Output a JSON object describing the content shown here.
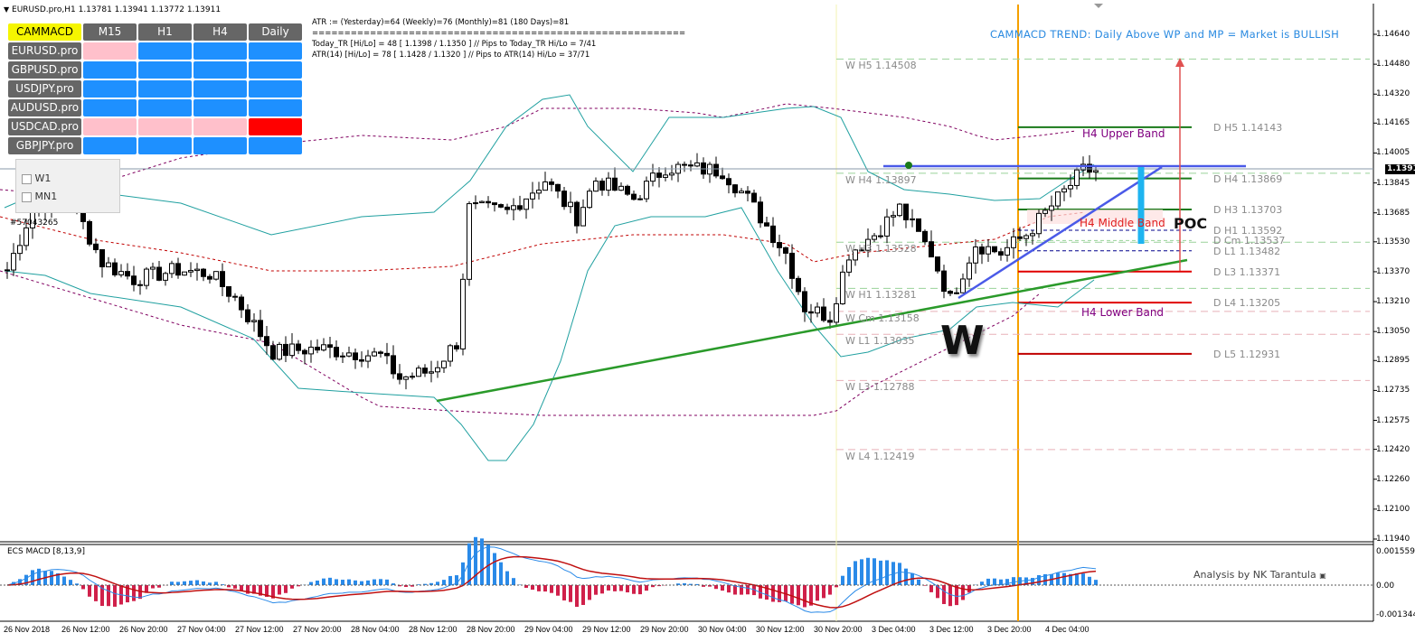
{
  "window": {
    "title": "EURUSD.pro,H1  1.13781 1.13941 1.13772 1.13911",
    "account_label": "#57043265"
  },
  "info_lines": [
    "ATR := (Yesterday)=64     (Weekly)=76      (Monthly)=81      (180 Days)=81",
    "==========================================================",
    "Today_TR [Hi/Lo] = 48 [ 1.1398 / 1.1350 ]  // Pips to Today_TR Hi/Lo  = 7/41",
    "ATR(14)   [Hi/Lo] = 78 [ 1.1428 / 1.1320 ]  //  Pips to ATR(14) Hi/Lo      = 37/71"
  ],
  "timeframe_checkboxes": [
    {
      "label": "W1",
      "checked": false
    },
    {
      "label": "MN1",
      "checked": false
    }
  ],
  "dashboard": {
    "title": "CAMMACD",
    "columns": [
      "M15",
      "H1",
      "H4",
      "Daily"
    ],
    "rows": [
      {
        "symbol": "EURUSD.pro",
        "cells": [
          "#ffc0cb",
          "#1e90ff",
          "#1e90ff",
          "#1e90ff"
        ]
      },
      {
        "symbol": "GBPUSD.pro",
        "cells": [
          "#1e90ff",
          "#1e90ff",
          "#1e90ff",
          "#1e90ff"
        ]
      },
      {
        "symbol": "USDJPY.pro",
        "cells": [
          "#1e90ff",
          "#1e90ff",
          "#1e90ff",
          "#1e90ff"
        ]
      },
      {
        "symbol": "AUDUSD.pro",
        "cells": [
          "#1e90ff",
          "#1e90ff",
          "#1e90ff",
          "#1e90ff"
        ]
      },
      {
        "symbol": "USDCAD.pro",
        "cells": [
          "#ffc0cb",
          "#ffc0cb",
          "#ffc0cb",
          "#ff0000"
        ]
      },
      {
        "symbol": "GBPJPY.pro",
        "cells": [
          "#1e90ff",
          "#1e90ff",
          "#1e90ff",
          "#1e90ff"
        ]
      }
    ]
  },
  "trend_text": "CAMMACD TREND: Daily Above WP and MP = Market is BULLISH",
  "annotations": {
    "w_pattern": "W",
    "poc": "POC",
    "h4_upper": "H4 Upper Band",
    "h4_middle": "H4 Middle Band",
    "h4_lower": "H4 Lower Band"
  },
  "macd": {
    "label": "ECS MACD [8,13,9]",
    "credit": "Analysis by NK Tarantula",
    "axis": [
      "0.001559",
      "0.00",
      "-0.001344"
    ]
  },
  "chart_data": {
    "type": "candlestick",
    "symbol": "EURUSD.pro",
    "timeframe": "H1",
    "ylim": [
      1.1194,
      1.1464
    ],
    "current_price": "1.13911",
    "y_ticks": [
      "1.14640",
      "1.14480",
      "1.14320",
      "1.14165",
      "1.14005",
      "1.13845",
      "1.13685",
      "1.13530",
      "1.13370",
      "1.13210",
      "1.13050",
      "1.12895",
      "1.12735",
      "1.12575",
      "1.12420",
      "1.12260",
      "1.12100",
      "1.11940"
    ],
    "x_ticks": [
      "26 Nov 2018",
      "26 Nov 12:00",
      "26 Nov 20:00",
      "27 Nov 04:00",
      "27 Nov 12:00",
      "27 Nov 20:00",
      "28 Nov 04:00",
      "28 Nov 12:00",
      "28 Nov 20:00",
      "29 Nov 04:00",
      "29 Nov 12:00",
      "29 Nov 20:00",
      "30 Nov 04:00",
      "30 Nov 12:00",
      "30 Nov 20:00",
      "3 Dec 04:00",
      "3 Dec 12:00",
      "3 Dec 20:00",
      "4 Dec 04:00"
    ],
    "price_keypoints": [
      [
        0,
        1.1338
      ],
      [
        4,
        1.1371
      ],
      [
        10,
        1.1376
      ],
      [
        15,
        1.1342
      ],
      [
        20,
        1.1333
      ],
      [
        27,
        1.1338
      ],
      [
        32,
        1.1336
      ],
      [
        36,
        1.1323
      ],
      [
        42,
        1.1294
      ],
      [
        49,
        1.1296
      ],
      [
        59,
        1.1292
      ],
      [
        62,
        1.128
      ],
      [
        67,
        1.1284
      ],
      [
        71,
        1.1299
      ],
      [
        73,
        1.1371
      ],
      [
        79,
        1.1369
      ],
      [
        85,
        1.1386
      ],
      [
        90,
        1.1366
      ],
      [
        93,
        1.1386
      ],
      [
        99,
        1.1376
      ],
      [
        104,
        1.1393
      ],
      [
        113,
        1.1391
      ],
      [
        117,
        1.1376
      ],
      [
        123,
        1.1347
      ],
      [
        126,
        1.1318
      ],
      [
        130,
        1.1313
      ],
      [
        133,
        1.1347
      ],
      [
        137,
        1.1357
      ],
      [
        141,
        1.1371
      ],
      [
        146,
        1.1347
      ],
      [
        149,
        1.1322
      ],
      [
        153,
        1.1352
      ],
      [
        157,
        1.1347
      ],
      [
        161,
        1.1357
      ],
      [
        166,
        1.1376
      ],
      [
        170,
        1.1391
      ],
      [
        172,
        1.13911
      ]
    ],
    "weekly_levels": [
      {
        "label": "W  H5 1.14508",
        "price": 1.14508
      },
      {
        "label": "W  H4 1.13897",
        "price": 1.13897
      },
      {
        "label": "W  H3 1.13528",
        "price": 1.13528
      },
      {
        "label": "W  H1 1.13281",
        "price": 1.13281
      },
      {
        "label": "W  Cm 1.13158",
        "price": 1.13158
      },
      {
        "label": "W  L1 1.13035",
        "price": 1.13035
      },
      {
        "label": "W  L3 1.12788",
        "price": 1.12788
      },
      {
        "label": "W  L4 1.12419",
        "price": 1.12419
      }
    ],
    "daily_levels": [
      {
        "label": "D  H5 1.14143",
        "price": 1.14143,
        "color": "#1a7a1a"
      },
      {
        "label": "D  H4 1.13869",
        "price": 1.13869,
        "color": "#1a7a1a"
      },
      {
        "label": "D  H3 1.13703",
        "price": 1.13703,
        "color": "#1a7a1a"
      },
      {
        "label": "D  H1 1.13592",
        "price": 1.13592,
        "color": "#00008b"
      },
      {
        "label": "D  Cm  1.13537",
        "price": 1.13537,
        "color": "#9ad29a"
      },
      {
        "label": "D  L1 1.13482",
        "price": 1.13482,
        "color": "#00008b"
      },
      {
        "label": "D  L3 1.13371",
        "price": 1.13371,
        "color": "#e00000"
      },
      {
        "label": "D  L4 1.13205",
        "price": 1.13205,
        "color": "#e00000"
      },
      {
        "label": "D  L5 1.12931",
        "price": 1.12931,
        "color": "#c00000"
      }
    ]
  }
}
